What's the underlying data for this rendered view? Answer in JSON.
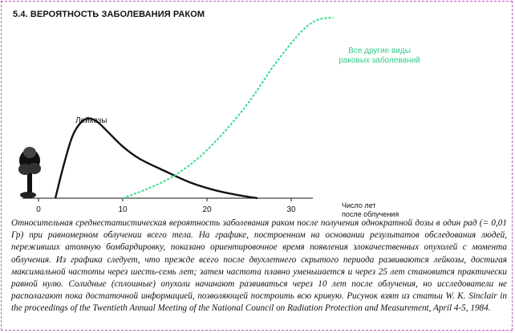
{
  "figure": {
    "title": "5.4. ВЕРОЯТНОСТЬ ЗАБОЛЕВАНИЯ РАКОМ",
    "caption": "Относительная среднестатистическая вероятность заболевания раком после получения однократной дозы в один рад (= 0,01 Гр) при равномерном облучении всего тела. На графике, построенном на основании результатов обследования людей, переживших атомную бомбардировку, показано ориентировочное время появления злокачественных опухолей с момента облучения. Из графика следует, что прежде всего после двухлетнего скрытого периода развиваются лейкозы, достигая максимальной частоты через шесть-семь лет; затем частота плавно уменьшается и через 25 лет становится практически равной нулю. Солидные (сплошные) опухоли начинают развиваться через 10 лет после облучения, но исследователи не располагают пока достаточной информацией, позволяющей построить всю кривую. Рисунок взят из статьи W. K. Sinclair in the proceedings of the Twentieth Annual Meeting of the National Council on Radiation Protection and Measurement, April 4-5, 1984."
  },
  "chart_data": {
    "type": "line",
    "title": "5.4. ВЕРОЯТНОСТЬ ЗАБОЛЕВАНИЯ РАКОМ",
    "xlabel": [
      "Число лет",
      "после облучения"
    ],
    "ylabel": "",
    "x_ticks": [
      0,
      10,
      20,
      30
    ],
    "xlim": [
      -2,
      37
    ],
    "y_axis_shown": false,
    "grid": false,
    "series": [
      {
        "name": "Лейкозы",
        "color": "#111111",
        "style": "solid",
        "x": [
          2,
          3,
          4,
          5,
          6,
          7,
          8,
          10,
          12,
          15,
          18,
          21,
          24,
          26
        ],
        "y": [
          0,
          0.38,
          0.7,
          0.86,
          0.91,
          0.87,
          0.78,
          0.59,
          0.45,
          0.31,
          0.18,
          0.09,
          0.03,
          0
        ]
      },
      {
        "name": [
          "Все другие виды",
          "раковых заболеваний"
        ],
        "color": "#33dd88",
        "style": "dashed",
        "x": [
          10,
          13,
          16,
          19,
          22,
          25,
          28,
          31,
          33,
          35
        ],
        "y": [
          0,
          0.11,
          0.25,
          0.46,
          0.75,
          1.1,
          1.52,
          1.88,
          2.03,
          2.06
        ]
      }
    ]
  }
}
